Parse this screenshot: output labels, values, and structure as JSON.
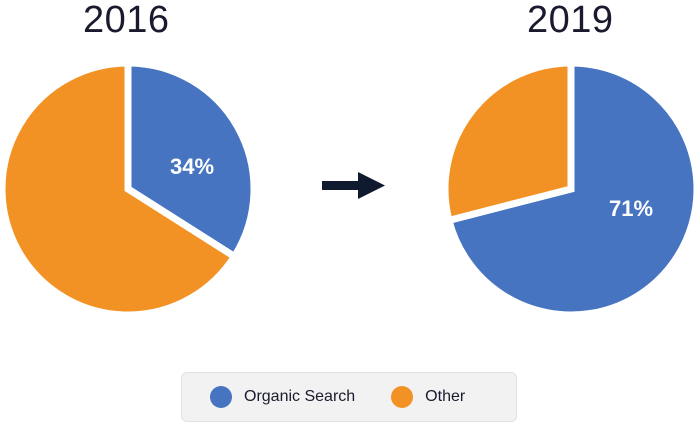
{
  "colors": {
    "organic": "#4674c1",
    "other": "#f39224",
    "arrow": "#0f1a2e"
  },
  "chart_data": [
    {
      "type": "pie",
      "title": "2016",
      "slices": [
        {
          "name": "Organic Search",
          "value": 34,
          "label": "34%",
          "color": "#4674c1"
        },
        {
          "name": "Other",
          "value": 66,
          "label": "",
          "color": "#f39224"
        }
      ]
    },
    {
      "type": "pie",
      "title": "2019",
      "slices": [
        {
          "name": "Organic Search",
          "value": 71,
          "label": "71%",
          "color": "#4674c1"
        },
        {
          "name": "Other",
          "value": 29,
          "label": "",
          "color": "#f39224"
        }
      ]
    }
  ],
  "legend": {
    "placement": "bottom-center",
    "items": [
      {
        "label": "Organic Search",
        "color": "#4674c1"
      },
      {
        "label": "Other",
        "color": "#f39224"
      }
    ]
  }
}
